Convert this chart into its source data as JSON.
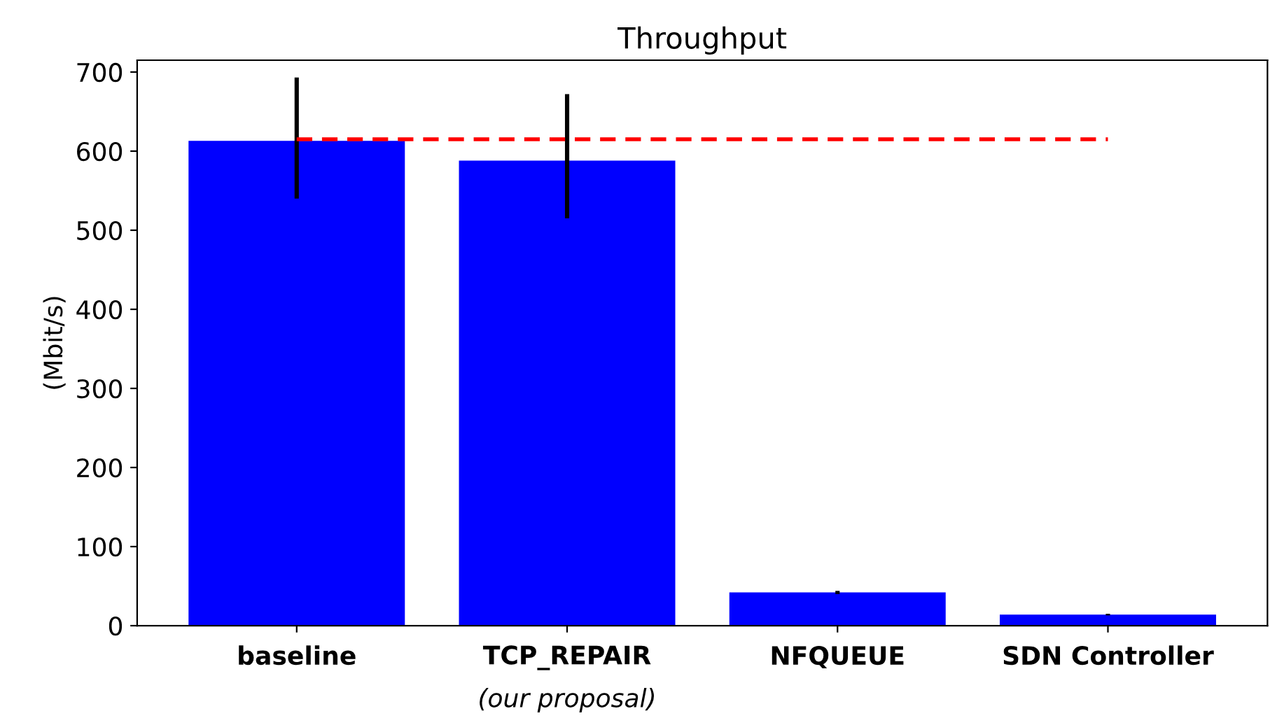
{
  "chart_data": {
    "type": "bar",
    "title": "Throughput",
    "ylabel": "(Mbit/s)",
    "categories": [
      "baseline",
      "TCP_REPAIR\n(our proposal)",
      "NFQUEUE",
      "SDN Controller"
    ],
    "series": [
      {
        "color": "#0000ff",
        "values": [
          613,
          588,
          42,
          14
        ],
        "errors": [
          [
            540,
            693
          ],
          [
            515,
            672
          ],
          [
            40,
            44
          ],
          [
            13,
            15
          ]
        ]
      }
    ],
    "ylim": [
      0,
      715
    ],
    "yticks": [
      0,
      100,
      200,
      300,
      400,
      500,
      600,
      700
    ],
    "ref_lines": [
      {
        "axis": "y",
        "value": 615,
        "color": "#ff0000",
        "line_style": "dashed"
      }
    ],
    "grid": false,
    "legend": false
  }
}
